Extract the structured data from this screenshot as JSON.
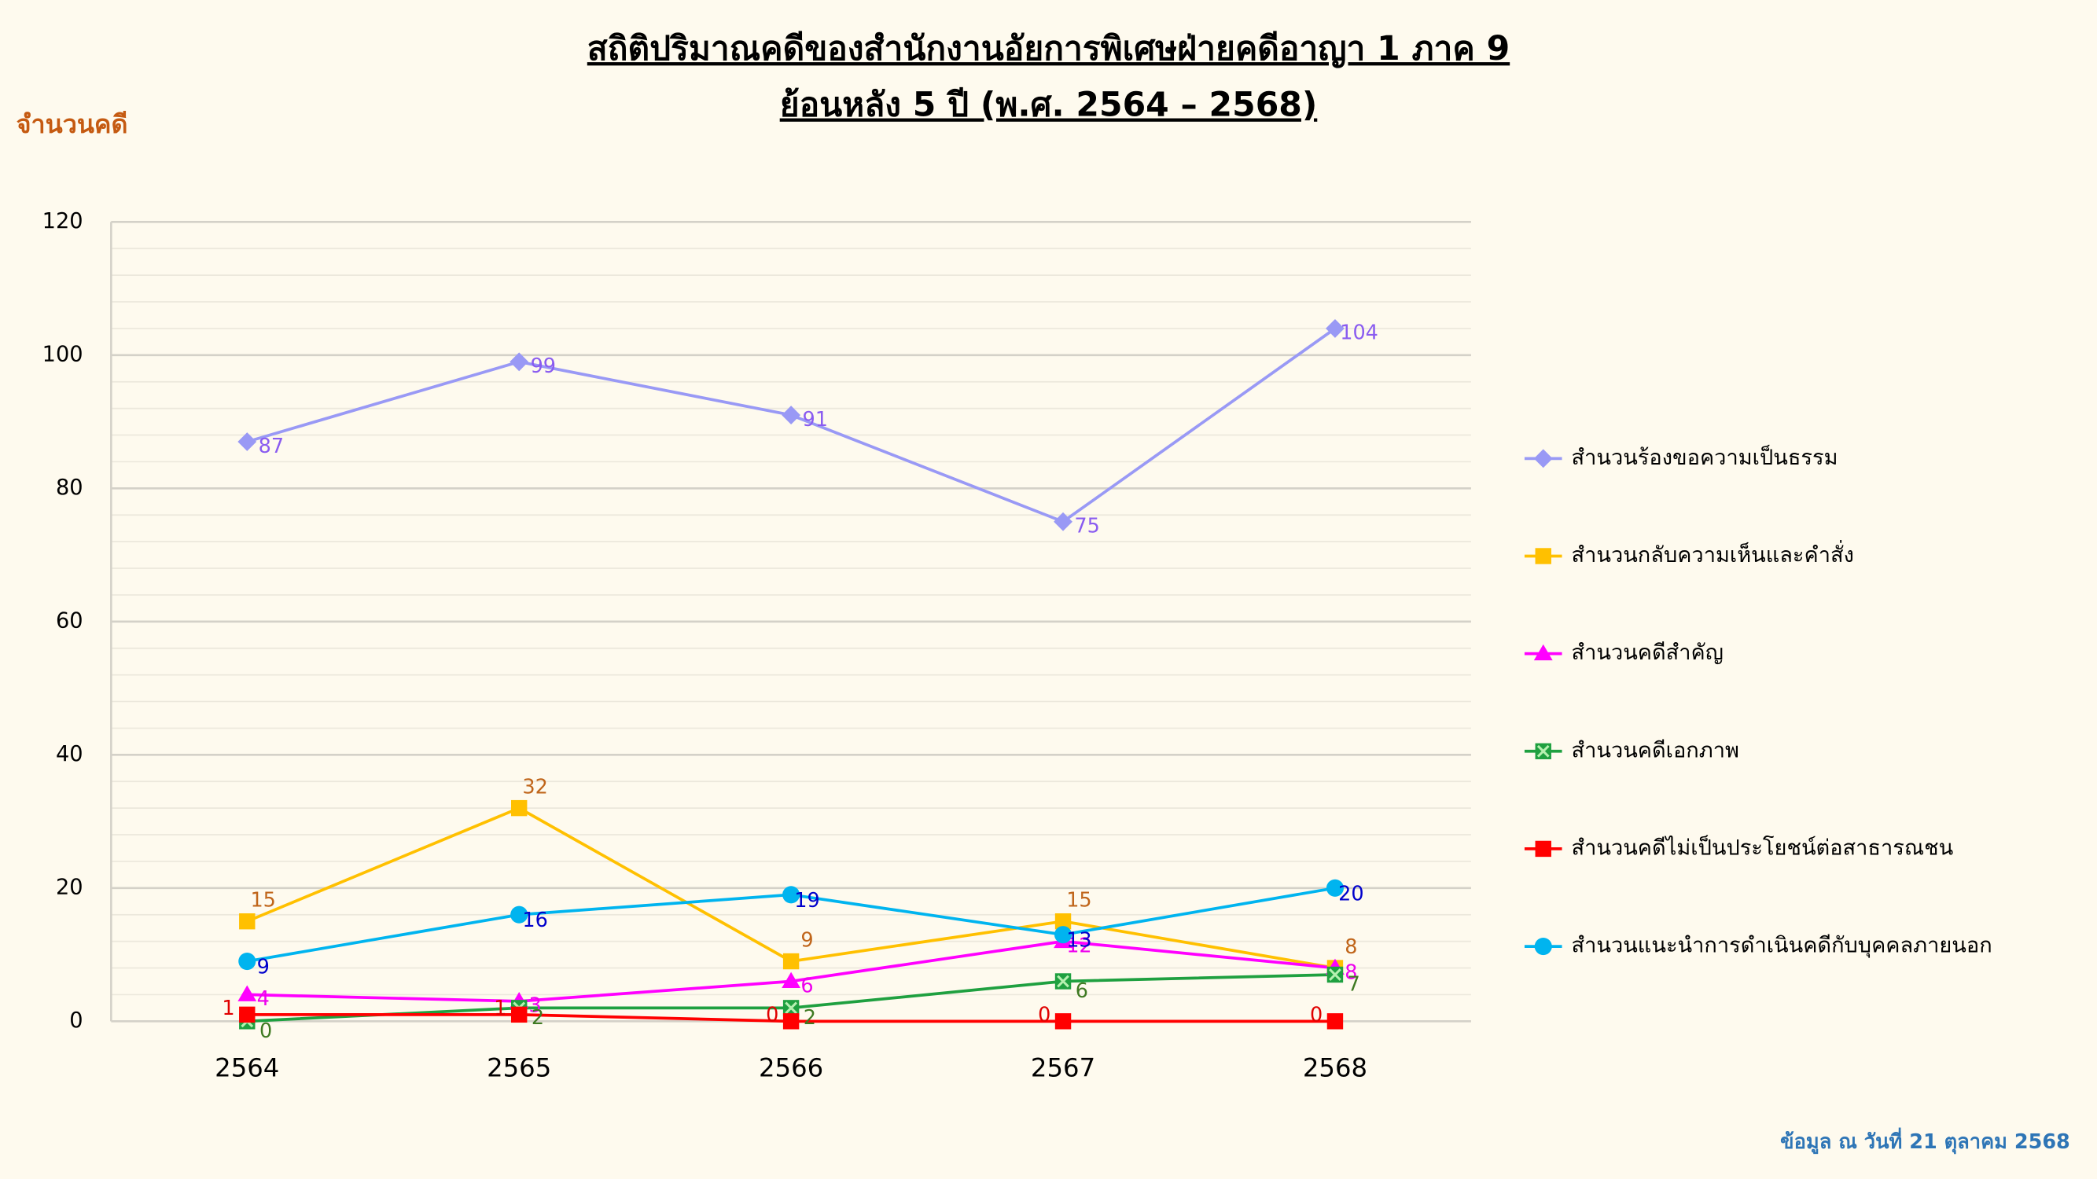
{
  "chart_data": {
    "type": "line",
    "title": [
      "สถิติปริมาณคดีของสำนักงานอัยการพิเศษฝ่ายคดีอาญา 1 ภาค 9",
      "ย้อนหลัง 5 ปี (พ.ศ. 2564 – 2568)"
    ],
    "y_label": "จำนวนคดี",
    "footnote": "ข้อมูล ณ วันที่ 21 ตุลาคม 2568",
    "categories": [
      "2564",
      "2565",
      "2566",
      "2567",
      "2568"
    ],
    "ylim": [
      0,
      120
    ],
    "yticks": [
      0,
      20,
      40,
      60,
      80,
      100,
      120
    ],
    "grid": true,
    "legend": "right",
    "series": [
      {
        "name": "สำนวนร้องขอความเป็นธรรม",
        "color": "#9999f5",
        "label_color": "#8a5cf0",
        "marker": "diamond",
        "values": [
          87,
          99,
          91,
          75,
          104
        ]
      },
      {
        "name": "สำนวนกลับความเห็นและคำสั่ง",
        "color": "#ffc000",
        "label_color": "#c0651a",
        "marker": "square",
        "values": [
          15,
          32,
          9,
          15,
          8
        ]
      },
      {
        "name": "สำนวนคดีสำคัญ",
        "color": "#ff00ff",
        "label_color": "#ee00ee",
        "marker": "triangle",
        "values": [
          4,
          3,
          6,
          12,
          8
        ]
      },
      {
        "name": "สำนวนคดีเอกภาพ",
        "color": "#1fa040",
        "label_color": "#3f7a22",
        "marker": "xsquare",
        "values": [
          0,
          2,
          2,
          6,
          7
        ]
      },
      {
        "name": "สำนวนคดีไม่เป็นประโยชน์ต่อสาธารณชน",
        "color": "#ff0000",
        "label_color": "#e00000",
        "marker": "square",
        "values": [
          1,
          1,
          0,
          0,
          0
        ]
      },
      {
        "name": "สำนวนแนะนำการดำเนินคดีกับบุคคลภายนอก",
        "color": "#00b4ef",
        "label_color": "#0000cc",
        "marker": "circle",
        "values": [
          9,
          16,
          19,
          13,
          20
        ]
      }
    ]
  }
}
